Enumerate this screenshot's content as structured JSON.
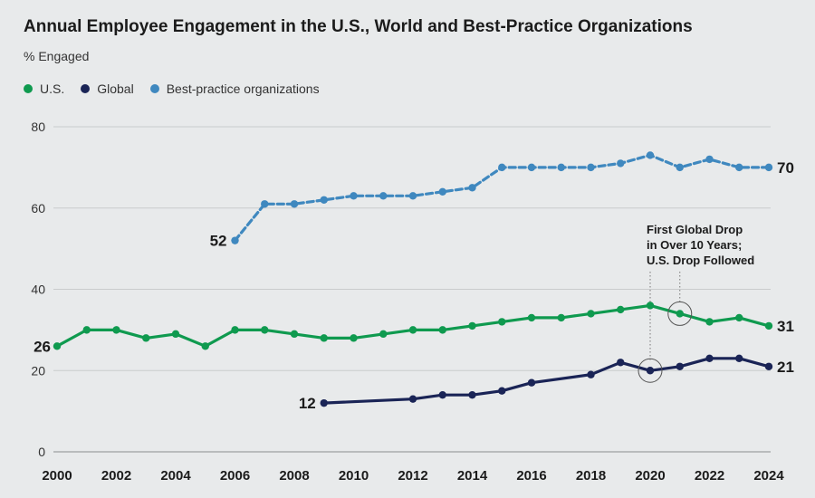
{
  "title": "Annual Employee Engagement in the U.S., World and Best-Practice Organizations",
  "subtitle": "% Engaged",
  "colors": {
    "us": "#0f9a4f",
    "global": "#1a2456",
    "best": "#3f88bf",
    "grid": "#c9cccd",
    "background": "#e8eaeb"
  },
  "chart_data": {
    "type": "line",
    "title": "Annual Employee Engagement in the U.S., World and Best-Practice Organizations",
    "ylabel": "% Engaged",
    "xlim": [
      2000,
      2024
    ],
    "ylim": [
      0,
      80
    ],
    "y_ticks": [
      "0",
      "20",
      "40",
      "60",
      "80"
    ],
    "x_ticks": [
      "2000",
      "2002",
      "2004",
      "2006",
      "2008",
      "2010",
      "2012",
      "2014",
      "2016",
      "2018",
      "2020",
      "2022",
      "2024"
    ],
    "legend": [
      "U.S.",
      "Global",
      "Best-practice organizations"
    ],
    "series": [
      {
        "name": "U.S.",
        "x": [
          2000,
          2001,
          2002,
          2003,
          2004,
          2005,
          2006,
          2007,
          2008,
          2009,
          2010,
          2011,
          2012,
          2013,
          2014,
          2015,
          2016,
          2017,
          2018,
          2019,
          2020,
          2021,
          2022,
          2023,
          2024
        ],
        "values": [
          26,
          30,
          30,
          28,
          29,
          26,
          30,
          30,
          29,
          28,
          28,
          29,
          30,
          30,
          31,
          32,
          33,
          33,
          34,
          35,
          36,
          34,
          32,
          33,
          31
        ],
        "start_label": "26",
        "end_label": "31"
      },
      {
        "name": "Global",
        "x": [
          2009,
          2012,
          2013,
          2014,
          2015,
          2016,
          2018,
          2019,
          2020,
          2021,
          2022,
          2023,
          2024
        ],
        "values": [
          12,
          13,
          14,
          14,
          15,
          17,
          19,
          22,
          20,
          21,
          23,
          23,
          21
        ],
        "start_label": "12",
        "end_label": "21"
      },
      {
        "name": "Best-practice organizations",
        "x": [
          2006,
          2007,
          2008,
          2009,
          2010,
          2011,
          2012,
          2013,
          2014,
          2015,
          2016,
          2017,
          2018,
          2019,
          2020,
          2021,
          2022,
          2023,
          2024
        ],
        "values": [
          52,
          61,
          61,
          62,
          63,
          63,
          63,
          64,
          65,
          70,
          70,
          70,
          70,
          71,
          73,
          70,
          72,
          70,
          70
        ],
        "start_label": "52",
        "end_label": "70",
        "dashed": true
      }
    ],
    "annotation": {
      "lines": [
        "First Global Drop",
        "in Over 10 Years;",
        "U.S. Drop Followed"
      ],
      "highlights": [
        {
          "series": "Global",
          "year": 2020,
          "value": 20
        },
        {
          "series": "U.S.",
          "year": 2021,
          "value": 34
        }
      ]
    }
  }
}
